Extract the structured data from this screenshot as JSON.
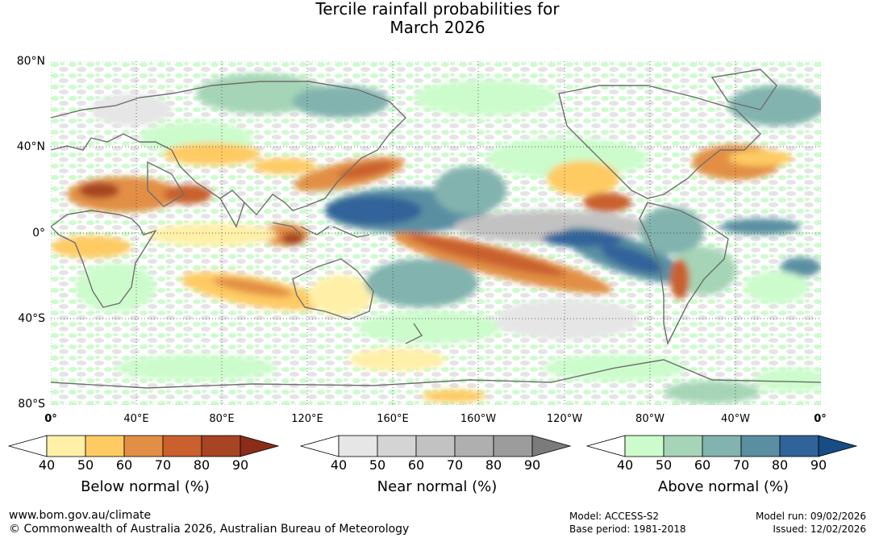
{
  "title_line1": "Tercile rainfall probabilities for",
  "title_line2": "March 2026",
  "map": {
    "lat_labels": [
      "80°N",
      "40°N",
      "0°",
      "40°S",
      "80°S"
    ],
    "lon_labels": [
      "0°",
      "40°E",
      "80°E",
      "120°E",
      "160°E",
      "160°W",
      "120°W",
      "80°W",
      "40°W",
      "0°"
    ]
  },
  "legends": [
    {
      "title": "Below normal (%)",
      "ticks": [
        "40",
        "50",
        "60",
        "70",
        "80",
        "90"
      ],
      "colors": [
        "#fff0a8",
        "#fecb63",
        "#e28f45",
        "#c9602e",
        "#a74424",
        "#8b2c18"
      ]
    },
    {
      "title": "Near normal (%)",
      "ticks": [
        "40",
        "50",
        "60",
        "70",
        "80",
        "90"
      ],
      "colors": [
        "#e6e6e6",
        "#d4d4d4",
        "#c2c2c2",
        "#afafaf",
        "#9c9c9c",
        "#7b7b7b"
      ]
    },
    {
      "title": "Above normal (%)",
      "ticks": [
        "40",
        "50",
        "60",
        "70",
        "80",
        "90"
      ],
      "colors": [
        "#ccfccc",
        "#a5d5b6",
        "#82b3ae",
        "#5a8fa2",
        "#30639a",
        "#174c84"
      ]
    }
  ],
  "colors": {
    "below_light": "#fff0a8",
    "below_mid": "#e8a04e",
    "below_dark": "#b04a22",
    "near": "#d6d6d6",
    "above_light": "#ccfccc",
    "above_mid": "#6fa7a8",
    "above_dark": "#1e5591",
    "land": "#6e6e6e"
  },
  "footer": {
    "url": "www.bom.gov.au/climate",
    "copyright": "© Commonwealth of Australia 2026, Australian Bureau of Meteorology",
    "model": "Model: ACCESS-S2",
    "base_period": "Base period: 1981-2018",
    "model_run": "Model run: 09/02/2026",
    "issued": "Issued: 12/02/2026"
  }
}
